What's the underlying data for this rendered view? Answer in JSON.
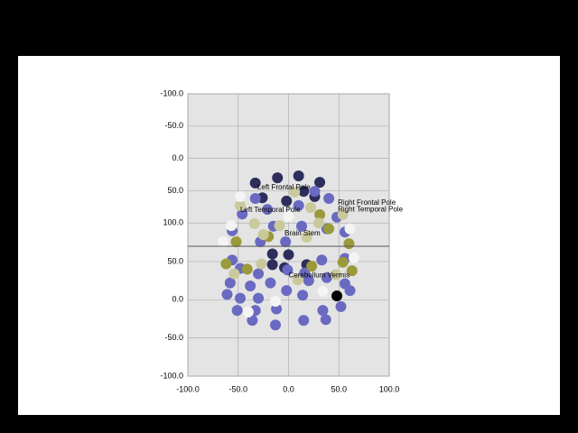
{
  "chart_data": [
    {
      "type": "scatter",
      "y_reversed": true,
      "grid": true,
      "xlim": [
        -100,
        100
      ],
      "ylim": [
        -100,
        136
      ],
      "yticks": [
        {
          "value": -100,
          "label": "-100.0"
        },
        {
          "value": -50,
          "label": "-50.0"
        },
        {
          "value": 0,
          "label": "0.0"
        },
        {
          "value": 50,
          "label": "50.0"
        },
        {
          "value": 100,
          "label": "100.0"
        }
      ],
      "series": [
        {
          "color": "#2e2e5c",
          "x": [
            -33,
            -11,
            10,
            31,
            -26,
            -2,
            15,
            26
          ],
          "y": [
            38,
            30,
            27,
            37,
            61,
            66,
            51,
            59
          ]
        },
        {
          "color": "#6a6ac2",
          "x": [
            -33,
            -21,
            10,
            26,
            40,
            48,
            56,
            -15,
            13,
            -56,
            -46,
            -3,
            -28,
            38
          ],
          "y": [
            62,
            79,
            73,
            51,
            62,
            91,
            114,
            105,
            105,
            112,
            86,
            129,
            129,
            109
          ]
        },
        {
          "color": "#9a9a3a",
          "x": [
            31,
            40,
            60,
            -52,
            -20
          ],
          "y": [
            87,
            109,
            132,
            129,
            121
          ]
        },
        {
          "color": "#c9c99c",
          "x": [
            -48,
            6,
            22,
            -34,
            -9,
            30,
            54,
            -25,
            18
          ],
          "y": [
            73,
            52,
            76,
            101,
            104,
            100,
            87,
            118,
            122
          ]
        },
        {
          "color": "#f4f4f4",
          "x": [
            -48,
            -57,
            61,
            -65,
            0
          ],
          "y": [
            59,
            104,
            109,
            129,
            90
          ]
        }
      ],
      "annotations": [
        {
          "text": "Left Frontal Pole",
          "x": -31,
          "y": 45
        },
        {
          "text": "Left Temporal Pole",
          "x": -48,
          "y": 80
        },
        {
          "text": "Right Frontal Pole",
          "x": 49,
          "y": 69
        },
        {
          "text": "Right Temporal Pole",
          "x": 49,
          "y": 79
        },
        {
          "text": "Brain Stem",
          "x": -4,
          "y": 116
        }
      ]
    },
    {
      "type": "scatter",
      "y_reversed": false,
      "grid": true,
      "xlim": [
        -100,
        100
      ],
      "xticks": [
        {
          "value": -100,
          "label": "-100.0"
        },
        {
          "value": -50,
          "label": "-50.0"
        },
        {
          "value": 0,
          "label": "0.0"
        },
        {
          "value": 50,
          "label": "50.0"
        },
        {
          "value": 100,
          "label": "100.0"
        }
      ],
      "ylim": [
        -100,
        70
      ],
      "yticks": [
        {
          "value": 50,
          "label": "50.0"
        },
        {
          "value": 0,
          "label": "0.0"
        },
        {
          "value": -50,
          "label": "-50.0"
        },
        {
          "value": -100,
          "label": "-100.0"
        }
      ],
      "series": [
        {
          "color": "#2e2e5c",
          "x": [
            -16,
            0,
            -16,
            18,
            -4
          ],
          "y": [
            60,
            59,
            46,
            46,
            42
          ]
        },
        {
          "color": "#6a6ac2",
          "x": [
            -56,
            -48,
            -58,
            -48,
            -61,
            -38,
            -30,
            -30,
            -33,
            -51,
            -36,
            -12,
            -13,
            -2,
            14,
            20,
            33,
            38,
            15,
            34,
            37,
            52,
            61,
            56,
            56,
            -1,
            -18,
            16
          ],
          "y": [
            52,
            41,
            22,
            2,
            7,
            18,
            34,
            2,
            -14,
            -14,
            -27,
            -12,
            -33,
            12,
            6,
            25,
            52,
            29,
            -27,
            -14,
            -26,
            -9,
            12,
            21,
            54,
            39,
            22,
            35
          ]
        },
        {
          "color": "#9a9a3a",
          "x": [
            -62,
            -41,
            63,
            54,
            23
          ],
          "y": [
            47,
            40,
            38,
            49,
            44
          ]
        },
        {
          "color": "#c9c99c",
          "x": [
            -27,
            9,
            47,
            -54
          ],
          "y": [
            47,
            26,
            33,
            34
          ]
        },
        {
          "color": "#f4f4f4",
          "x": [
            -13,
            34,
            65,
            -40
          ],
          "y": [
            -2,
            11,
            55,
            -16
          ]
        },
        {
          "color": "#000000",
          "x": [
            48
          ],
          "y": [
            5
          ]
        }
      ],
      "annotations": [
        {
          "text": "Cerebellum Vermis",
          "x": 0,
          "y": 32
        }
      ]
    }
  ]
}
